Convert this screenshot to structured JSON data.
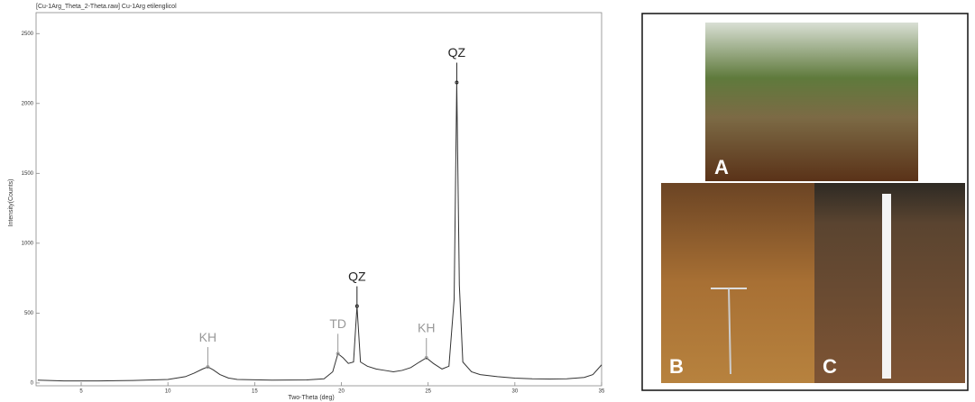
{
  "chart_data": {
    "type": "line",
    "title": "[Cu-1Arg_Theta_2-Theta.raw] Cu-1Arg etilenglicol",
    "x_label": "Two-Theta (deg)",
    "y_label": "Intensity(Counts)",
    "color": "#333333",
    "x": [
      2.5,
      4,
      6,
      8,
      10,
      11,
      11.5,
      12,
      12.3,
      12.6,
      13,
      13.5,
      14,
      16,
      18,
      19,
      19.5,
      19.8,
      20.1,
      20.4,
      20.7,
      20.9,
      21.1,
      21.5,
      22,
      22.5,
      23,
      23.5,
      24,
      24.5,
      24.9,
      25.3,
      25.8,
      26.2,
      26.5,
      26.65,
      26.8,
      27,
      27.5,
      28,
      29,
      30,
      31,
      32,
      33,
      34,
      34.5,
      35
    ],
    "values": [
      20,
      15,
      15,
      18,
      25,
      45,
      70,
      100,
      115,
      95,
      60,
      35,
      25,
      20,
      22,
      30,
      80,
      210,
      180,
      140,
      150,
      550,
      150,
      120,
      100,
      90,
      80,
      90,
      110,
      150,
      180,
      140,
      100,
      120,
      600,
      2150,
      700,
      150,
      80,
      60,
      45,
      35,
      30,
      28,
      30,
      40,
      60,
      130
    ],
    "xlim": [
      2.4,
      35
    ],
    "ylim": [
      -20,
      2650
    ],
    "xticks": [
      5,
      10,
      15,
      20,
      25,
      30,
      35
    ],
    "yticks": [
      0,
      500,
      1000,
      1500,
      2000,
      2500
    ],
    "annotations": [
      {
        "text": "KH",
        "x": 12.3,
        "y": 115,
        "color": "#999999"
      },
      {
        "text": "TD",
        "x": 19.8,
        "y": 210,
        "color": "#999999"
      },
      {
        "text": "QZ",
        "x": 20.9,
        "y": 550,
        "color": "#222222"
      },
      {
        "text": "KH",
        "x": 24.9,
        "y": 180,
        "color": "#999999"
      },
      {
        "text": "QZ",
        "x": 26.65,
        "y": 2150,
        "color": "#222222"
      }
    ]
  },
  "photos": {
    "labels": [
      "A",
      "B",
      "C"
    ]
  }
}
